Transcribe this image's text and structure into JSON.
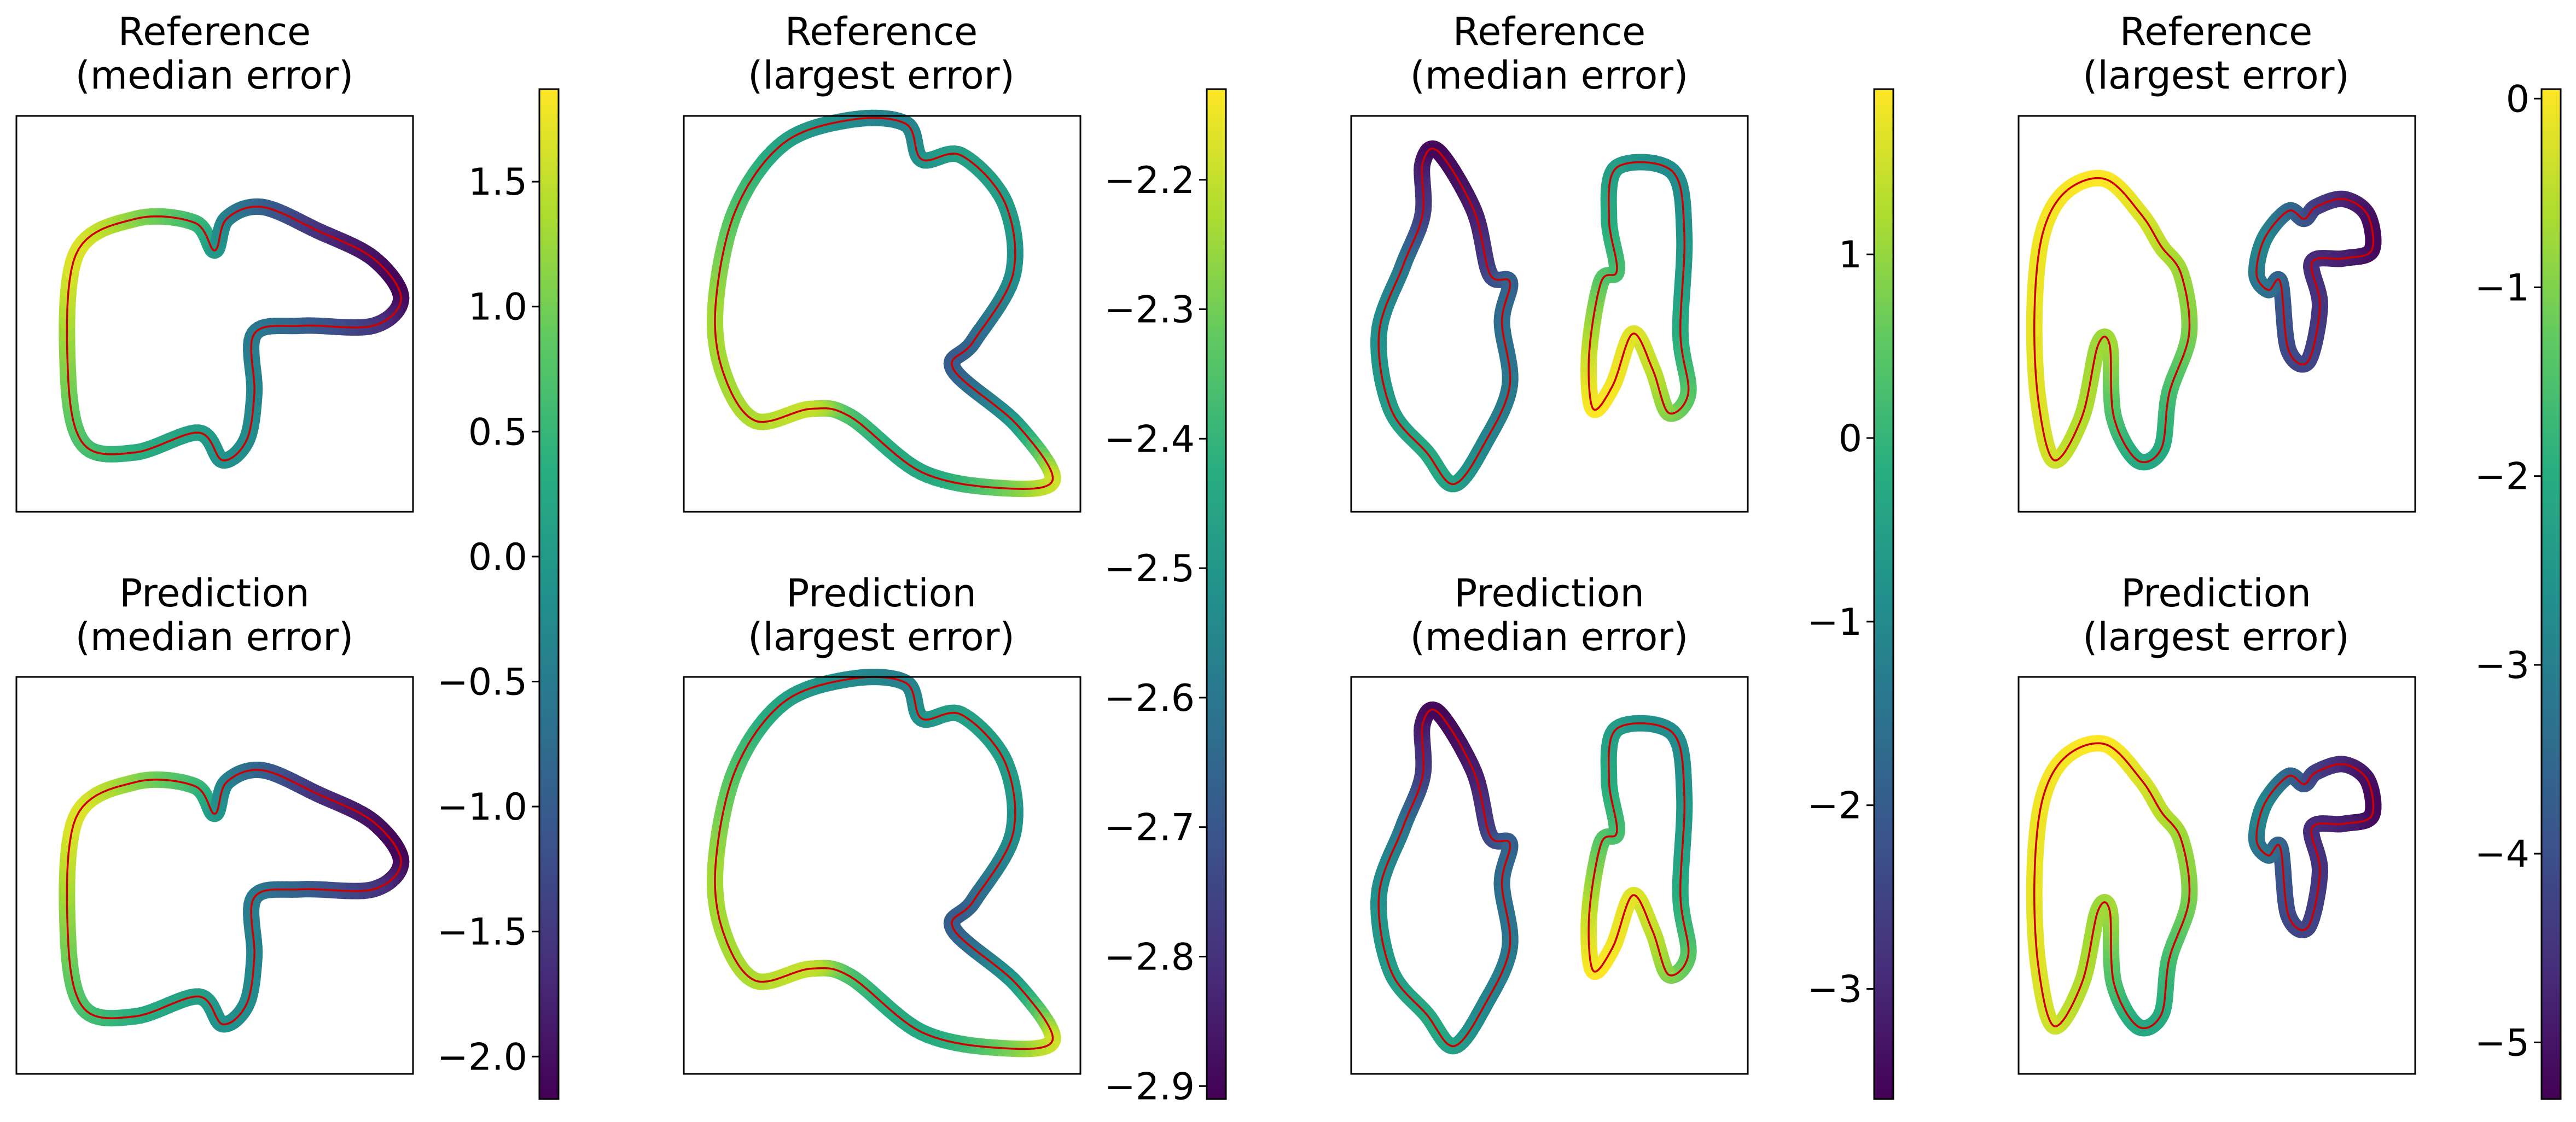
{
  "figure": {
    "panel_titles": {
      "reference_median": [
        "Reference",
        "(median error)"
      ],
      "reference_largest": [
        "Reference",
        "(largest error)"
      ],
      "prediction_median": [
        "Prediction",
        "(median error)"
      ],
      "prediction_largest": [
        "Prediction",
        "(largest error)"
      ]
    },
    "colormap": "viridis",
    "curve_line_color": "#cc0000",
    "frame_color": "#000000"
  },
  "chart_data": [
    {
      "type": "colored-curve",
      "group": 1,
      "row": "reference",
      "title": "Reference\n(median error)",
      "color_range": [
        -2.17,
        1.87
      ],
      "shape_index": 0
    },
    {
      "type": "colored-curve",
      "group": 1,
      "row": "prediction",
      "title": "Prediction\n(median error)",
      "color_range": [
        -2.17,
        1.87
      ],
      "shape_index": 0
    },
    {
      "type": "colorbar",
      "group": 1,
      "colormap": "viridis",
      "range": [
        -2.17,
        1.87
      ],
      "ticks": [
        1.5,
        1.0,
        0.5,
        0.0,
        -0.5,
        -1.0,
        -1.5,
        -2.0
      ],
      "tick_labels": [
        "1.5",
        "1.0",
        "0.5",
        "0.0",
        "−0.5",
        "−1.0",
        "−1.5",
        "−2.0"
      ]
    },
    {
      "type": "colored-curve",
      "group": 2,
      "row": "reference",
      "title": "Reference\n(largest error)",
      "color_range": [
        -2.91,
        -2.13
      ],
      "shape_index": 1
    },
    {
      "type": "colored-curve",
      "group": 2,
      "row": "prediction",
      "title": "Prediction\n(largest error)",
      "color_range": [
        -2.91,
        -2.13
      ],
      "shape_index": 1
    },
    {
      "type": "colorbar",
      "group": 2,
      "colormap": "viridis",
      "range": [
        -2.91,
        -2.13
      ],
      "ticks": [
        -2.2,
        -2.3,
        -2.4,
        -2.5,
        -2.6,
        -2.7,
        -2.8,
        -2.9
      ],
      "tick_labels": [
        "−2.2",
        "−2.3",
        "−2.4",
        "−2.5",
        "−2.6",
        "−2.7",
        "−2.8",
        "−2.9"
      ]
    },
    {
      "type": "colored-curve",
      "group": 3,
      "row": "reference",
      "title": "Reference\n(median error)",
      "color_range": [
        -3.6,
        1.9
      ],
      "shape_index": 2
    },
    {
      "type": "colored-curve",
      "group": 3,
      "row": "prediction",
      "title": "Prediction\n(median error)",
      "color_range": [
        -3.6,
        1.9
      ],
      "shape_index": 2
    },
    {
      "type": "colorbar",
      "group": 3,
      "colormap": "viridis",
      "range": [
        -3.6,
        1.9
      ],
      "ticks": [
        1,
        0,
        -1,
        -2,
        -3
      ],
      "tick_labels": [
        "1",
        "0",
        "−1",
        "−2",
        "−3"
      ]
    },
    {
      "type": "colored-curve",
      "group": 4,
      "row": "reference",
      "title": "Reference\n(largest error)",
      "color_range": [
        -5.3,
        0.05
      ],
      "shape_index": 3
    },
    {
      "type": "colored-curve",
      "group": 4,
      "row": "prediction",
      "title": "Prediction\n(largest error)",
      "color_range": [
        -5.3,
        0.05
      ],
      "shape_index": 3
    },
    {
      "type": "colorbar",
      "group": 4,
      "colormap": "viridis",
      "range": [
        -5.3,
        0.05
      ],
      "ticks": [
        0,
        -1,
        -2,
        -3,
        -4,
        -5
      ],
      "tick_labels": [
        "0",
        "−1",
        "−2",
        "−3",
        "−4",
        "−5"
      ]
    }
  ]
}
